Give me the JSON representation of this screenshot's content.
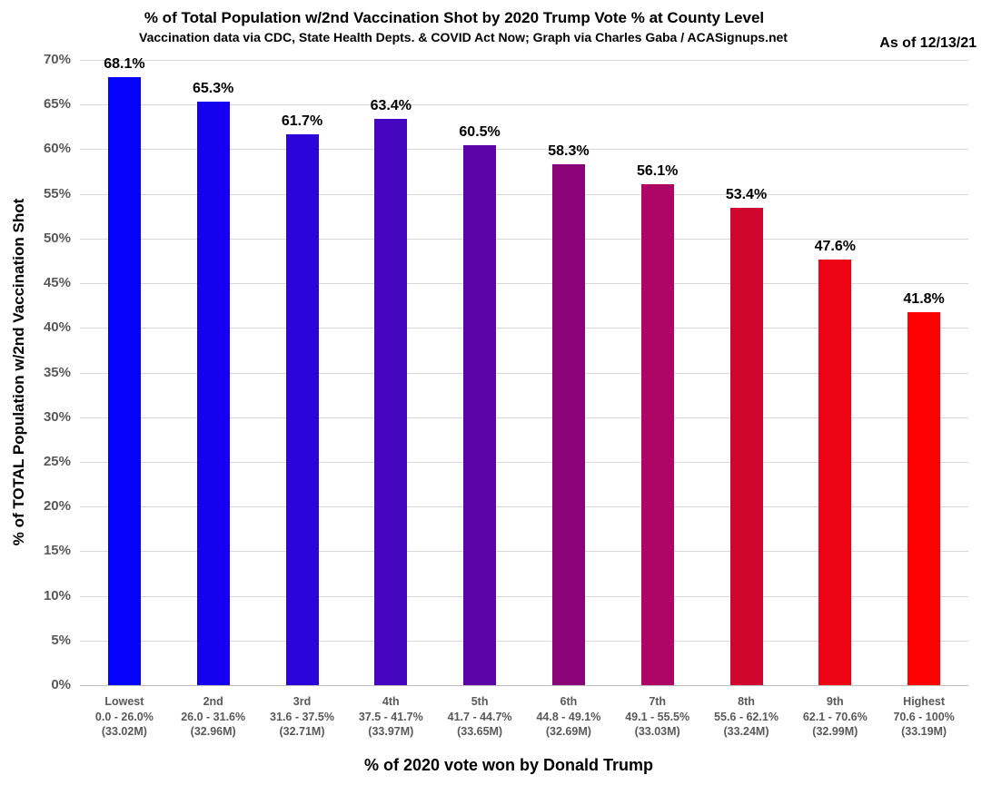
{
  "header": {
    "title": "% of Total Population w/2nd Vaccination Shot by 2020 Trump Vote % at County Level",
    "subtitle": "Vaccination data via CDC, State Health Depts. & COVID Act Now; Graph via Charles Gaba / ACASignups.net",
    "as_of": "As of 12/13/21"
  },
  "chart_data": {
    "type": "bar",
    "title": "% of Total Population w/2nd Vaccination Shot by 2020 Trump Vote % at County Level",
    "subtitle": "Vaccination data via CDC, State Health Depts. & COVID Act Now; Graph via Charles Gaba / ACASignups.net",
    "annotation": "As of 12/13/21",
    "xlabel": "% of 2020 vote won by Donald Trump",
    "ylabel": "% of TOTAL Population w/2nd Vaccination Shot",
    "ylim": [
      0,
      70
    ],
    "ytick_step": 5,
    "ytick_labels": [
      "0%",
      "5%",
      "10%",
      "15%",
      "20%",
      "25%",
      "30%",
      "35%",
      "40%",
      "45%",
      "50%",
      "55%",
      "60%",
      "65%",
      "70%"
    ],
    "grid": "horizontal",
    "legend": "none",
    "categories": [
      {
        "rank": "Lowest",
        "range": "0.0 - 26.0%",
        "population": "(33.02M)"
      },
      {
        "rank": "2nd",
        "range": "26.0 - 31.6%",
        "population": "(32.96M)"
      },
      {
        "rank": "3rd",
        "range": "31.6 - 37.5%",
        "population": "(32.71M)"
      },
      {
        "rank": "4th",
        "range": "37.5 - 41.7%",
        "population": "(33.97M)"
      },
      {
        "rank": "5th",
        "range": "41.7 - 44.7%",
        "population": "(33.65M)"
      },
      {
        "rank": "6th",
        "range": "44.8 - 49.1%",
        "population": "(32.69M)"
      },
      {
        "rank": "7th",
        "range": "49.1 - 55.5%",
        "population": "(33.03M)"
      },
      {
        "rank": "8th",
        "range": "55.6 - 62.1%",
        "population": "(33.24M)"
      },
      {
        "rank": "9th",
        "range": "62.1 - 70.6%",
        "population": "(32.99M)"
      },
      {
        "rank": "Highest",
        "range": "70.6 - 100%",
        "population": "(33.19M)"
      }
    ],
    "values": [
      68.1,
      65.3,
      61.7,
      63.4,
      60.5,
      58.3,
      56.1,
      53.4,
      47.6,
      41.8
    ],
    "value_labels": [
      "68.1%",
      "65.3%",
      "61.7%",
      "63.4%",
      "60.5%",
      "58.3%",
      "56.1%",
      "53.4%",
      "47.6%",
      "41.8%"
    ],
    "bar_colors": [
      "#0702fb",
      "#1500ef",
      "#2b04da",
      "#4606c0",
      "#5d04a6",
      "#8b0378",
      "#ad0465",
      "#d1062f",
      "#ee0315",
      "#fe0201"
    ],
    "colors": {
      "grid": "#d9d9d9",
      "axis_text": "#595959",
      "label_text": "#000000",
      "background": "#ffffff"
    }
  }
}
